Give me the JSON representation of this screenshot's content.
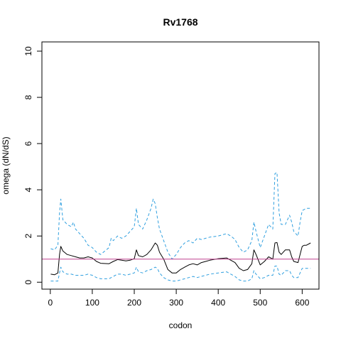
{
  "chart_data": {
    "type": "line",
    "title": "Rv1768",
    "xlabel": "codon",
    "ylabel": "omega (dN/dS)",
    "xlim": [
      -20,
      640
    ],
    "ylim": [
      -0.3,
      10.4
    ],
    "x_ticks": [
      0,
      100,
      200,
      300,
      400,
      500,
      600
    ],
    "y_ticks": [
      0,
      2,
      4,
      6,
      8,
      10
    ],
    "reference_line": {
      "y": 1,
      "color": "#C0408F"
    },
    "grid": false,
    "legend": "none",
    "series": [
      {
        "style": "solid",
        "color": "#000000",
        "x": [
          1,
          10,
          18,
          22,
          25,
          30,
          40,
          50,
          60,
          70,
          80,
          90,
          100,
          110,
          120,
          140,
          150,
          160,
          170,
          180,
          190,
          200,
          205,
          210,
          220,
          230,
          240,
          250,
          255,
          260,
          270,
          280,
          290,
          300,
          310,
          320,
          330,
          340,
          350,
          360,
          370,
          380,
          400,
          420,
          430,
          440,
          450,
          460,
          470,
          480,
          485,
          490,
          500,
          510,
          520,
          530,
          535,
          540,
          545,
          550,
          560,
          570,
          575,
          580,
          590,
          595,
          600,
          605,
          610,
          620
        ],
        "y": [
          0.35,
          0.32,
          0.4,
          1.2,
          1.55,
          1.35,
          1.2,
          1.15,
          1.1,
          1.05,
          1.05,
          1.1,
          1.05,
          0.9,
          0.82,
          0.8,
          0.9,
          0.98,
          0.95,
          0.92,
          0.95,
          1.02,
          1.4,
          1.15,
          1.1,
          1.2,
          1.4,
          1.7,
          1.6,
          1.3,
          1.0,
          0.55,
          0.4,
          0.4,
          0.55,
          0.65,
          0.75,
          0.8,
          0.75,
          0.85,
          0.9,
          0.95,
          1.02,
          1.05,
          0.95,
          0.85,
          0.6,
          0.5,
          0.55,
          0.8,
          1.4,
          1.2,
          0.75,
          0.9,
          1.1,
          1.0,
          1.7,
          1.72,
          1.3,
          1.2,
          1.4,
          1.4,
          1.1,
          0.9,
          0.85,
          1.2,
          1.55,
          1.6,
          1.6,
          1.7
        ]
      },
      {
        "style": "dashed",
        "color": "#2F9FDF",
        "x": [
          1,
          10,
          18,
          22,
          25,
          30,
          40,
          50,
          55,
          60,
          70,
          80,
          90,
          100,
          110,
          120,
          140,
          145,
          150,
          160,
          170,
          180,
          190,
          200,
          205,
          210,
          220,
          230,
          240,
          245,
          250,
          255,
          260,
          270,
          280,
          290,
          300,
          310,
          320,
          330,
          340,
          350,
          360,
          370,
          380,
          400,
          420,
          430,
          440,
          450,
          460,
          470,
          480,
          485,
          490,
          500,
          510,
          520,
          530,
          535,
          540,
          545,
          550,
          560,
          570,
          575,
          580,
          590,
          595,
          600,
          605,
          610,
          620
        ],
        "y": [
          1.45,
          1.4,
          1.6,
          3.0,
          3.6,
          2.7,
          2.5,
          2.4,
          2.6,
          2.3,
          2.1,
          1.9,
          1.6,
          1.5,
          1.3,
          1.2,
          1.5,
          1.9,
          1.8,
          2.0,
          1.9,
          2.0,
          2.2,
          2.4,
          3.2,
          2.5,
          2.3,
          2.7,
          3.2,
          3.6,
          3.4,
          2.8,
          2.3,
          1.8,
          1.3,
          1.0,
          1.2,
          1.5,
          1.7,
          1.8,
          1.7,
          1.9,
          1.85,
          1.9,
          1.95,
          2.0,
          2.1,
          2.0,
          1.85,
          1.5,
          1.3,
          1.4,
          1.8,
          2.6,
          2.2,
          1.5,
          2.0,
          2.5,
          2.3,
          4.7,
          4.75,
          3.0,
          2.5,
          2.5,
          2.9,
          2.6,
          2.2,
          2.0,
          2.6,
          3.1,
          3.15,
          3.2,
          3.2
        ]
      },
      {
        "style": "dashed",
        "color": "#2F9FDF",
        "x": [
          1,
          10,
          18,
          22,
          25,
          30,
          40,
          50,
          60,
          70,
          80,
          90,
          100,
          110,
          120,
          140,
          150,
          160,
          170,
          180,
          190,
          200,
          205,
          210,
          220,
          230,
          240,
          250,
          255,
          260,
          270,
          280,
          290,
          300,
          310,
          320,
          330,
          340,
          350,
          360,
          370,
          380,
          400,
          420,
          430,
          440,
          450,
          460,
          470,
          480,
          485,
          490,
          500,
          510,
          520,
          530,
          535,
          540,
          545,
          550,
          560,
          570,
          575,
          580,
          590,
          595,
          600,
          605,
          610,
          620
        ],
        "y": [
          0.05,
          0.05,
          0.05,
          0.4,
          0.65,
          0.45,
          0.35,
          0.35,
          0.3,
          0.3,
          0.3,
          0.35,
          0.3,
          0.2,
          0.15,
          0.15,
          0.25,
          0.35,
          0.35,
          0.3,
          0.35,
          0.4,
          0.65,
          0.45,
          0.4,
          0.5,
          0.55,
          0.65,
          0.6,
          0.4,
          0.2,
          0.1,
          0.05,
          0.05,
          0.1,
          0.15,
          0.2,
          0.25,
          0.2,
          0.25,
          0.3,
          0.35,
          0.4,
          0.45,
          0.35,
          0.25,
          0.1,
          0.05,
          0.05,
          0.15,
          0.5,
          0.35,
          0.15,
          0.2,
          0.3,
          0.3,
          0.7,
          0.7,
          0.35,
          0.3,
          0.5,
          0.5,
          0.3,
          0.2,
          0.2,
          0.4,
          0.6,
          0.6,
          0.6,
          0.6
        ]
      }
    ]
  }
}
